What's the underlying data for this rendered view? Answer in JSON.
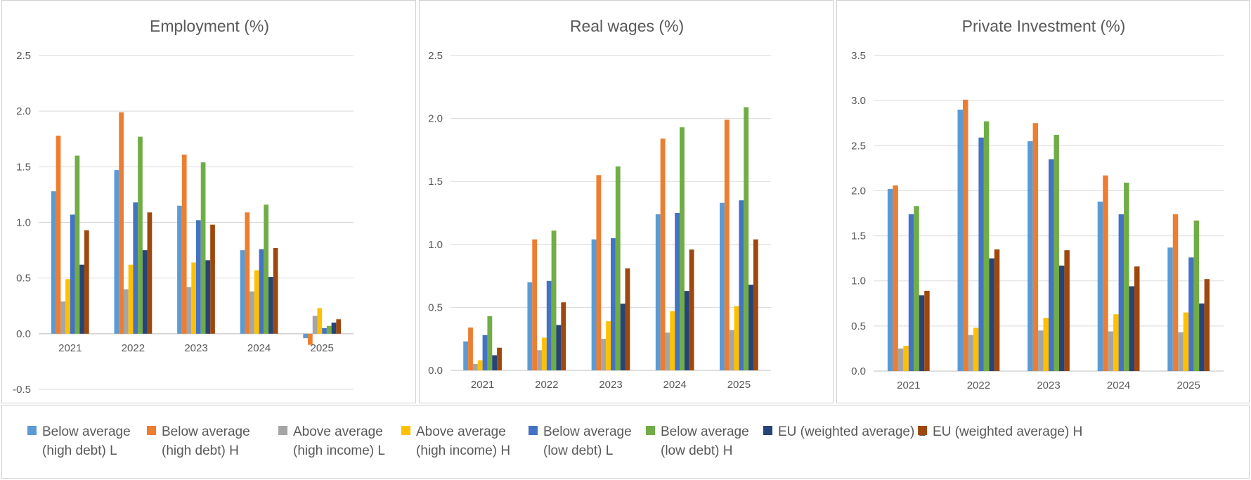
{
  "series": [
    {
      "name": "Below average\n(high debt) L",
      "color": "#5B9BD5"
    },
    {
      "name": "Below average\n(high debt) H",
      "color": "#ED7D31"
    },
    {
      "name": "Above average\n(high income) L",
      "color": "#A5A5A5"
    },
    {
      "name": "Above average\n(high income) H",
      "color": "#FFC000"
    },
    {
      "name": "Below average\n(low debt) L",
      "color": "#4472C4"
    },
    {
      "name": "Below average\n(low debt) H",
      "color": "#70AD47"
    },
    {
      "name": "EU (weighted average) L",
      "color": "#264478"
    },
    {
      "name": "EU (weighted average) H",
      "color": "#9E480E"
    }
  ],
  "chart_data": [
    {
      "type": "bar",
      "title": "Employment (%)",
      "categories": [
        "2021",
        "2022",
        "2023",
        "2024",
        "2025"
      ],
      "ylim": [
        -0.5,
        2.5
      ],
      "yticks": [
        "-0.5",
        "0.0",
        "0.5",
        "1.0",
        "1.5",
        "2.0",
        "2.5"
      ],
      "series": [
        {
          "name": "Below average (high debt) L",
          "values": [
            1.28,
            1.47,
            1.15,
            0.75,
            -0.04
          ]
        },
        {
          "name": "Below average (high debt) H",
          "values": [
            1.78,
            1.99,
            1.61,
            1.09,
            -0.1
          ]
        },
        {
          "name": "Above average (high income) L",
          "values": [
            0.29,
            0.4,
            0.42,
            0.38,
            0.16
          ]
        },
        {
          "name": "Above average (high income) H",
          "values": [
            0.49,
            0.62,
            0.64,
            0.57,
            0.23
          ]
        },
        {
          "name": "Below average (low debt) L",
          "values": [
            1.07,
            1.18,
            1.02,
            0.76,
            0.05
          ]
        },
        {
          "name": "Below average (low debt) H",
          "values": [
            1.6,
            1.77,
            1.54,
            1.16,
            0.07
          ]
        },
        {
          "name": "EU (weighted average) L",
          "values": [
            0.62,
            0.75,
            0.66,
            0.51,
            0.1
          ]
        },
        {
          "name": "EU (weighted average) H",
          "values": [
            0.93,
            1.09,
            0.98,
            0.77,
            0.13
          ]
        }
      ]
    },
    {
      "type": "bar",
      "title": "Real wages (%)",
      "categories": [
        "2021",
        "2022",
        "2023",
        "2024",
        "2025"
      ],
      "ylim": [
        0,
        2.5
      ],
      "yticks": [
        "0.0",
        "0.5",
        "1.0",
        "1.5",
        "2.0",
        "2.5"
      ],
      "series": [
        {
          "name": "Below average (high debt) L",
          "values": [
            0.23,
            0.7,
            1.04,
            1.24,
            1.33
          ]
        },
        {
          "name": "Below average (high debt) H",
          "values": [
            0.34,
            1.04,
            1.55,
            1.84,
            1.99
          ]
        },
        {
          "name": "Above average (high income) L",
          "values": [
            0.05,
            0.16,
            0.25,
            0.3,
            0.32
          ]
        },
        {
          "name": "Above average (high income) H",
          "values": [
            0.08,
            0.26,
            0.39,
            0.47,
            0.51
          ]
        },
        {
          "name": "Below average (low debt) L",
          "values": [
            0.28,
            0.71,
            1.05,
            1.25,
            1.35
          ]
        },
        {
          "name": "Below average (low debt) H",
          "values": [
            0.43,
            1.11,
            1.62,
            1.93,
            2.09
          ]
        },
        {
          "name": "EU (weighted average) L",
          "values": [
            0.12,
            0.36,
            0.53,
            0.63,
            0.68
          ]
        },
        {
          "name": "EU (weighted average) H",
          "values": [
            0.18,
            0.54,
            0.81,
            0.96,
            1.04
          ]
        }
      ]
    },
    {
      "type": "bar",
      "title": "Private Investment (%)",
      "categories": [
        "2021",
        "2022",
        "2023",
        "2024",
        "2025"
      ],
      "ylim": [
        0,
        3.5
      ],
      "yticks": [
        "0.0",
        "0.5",
        "1.0",
        "1.5",
        "2.0",
        "2.5",
        "3.0",
        "3.5"
      ],
      "series": [
        {
          "name": "Below average (high debt) L",
          "values": [
            2.02,
            2.9,
            2.55,
            1.88,
            1.37
          ]
        },
        {
          "name": "Below average (high debt) H",
          "values": [
            2.06,
            3.01,
            2.75,
            2.17,
            1.74
          ]
        },
        {
          "name": "Above average (high income) L",
          "values": [
            0.25,
            0.4,
            0.45,
            0.44,
            0.43
          ]
        },
        {
          "name": "Above average (high income) H",
          "values": [
            0.28,
            0.48,
            0.59,
            0.63,
            0.65
          ]
        },
        {
          "name": "Below average (low debt) L",
          "values": [
            1.74,
            2.59,
            2.35,
            1.74,
            1.26
          ]
        },
        {
          "name": "Below average (low debt) H",
          "values": [
            1.83,
            2.77,
            2.62,
            2.09,
            1.67
          ]
        },
        {
          "name": "EU (weighted average) L",
          "values": [
            0.84,
            1.25,
            1.17,
            0.94,
            0.75
          ]
        },
        {
          "name": "EU (weighted average) H",
          "values": [
            0.89,
            1.35,
            1.34,
            1.16,
            1.02
          ]
        }
      ]
    }
  ]
}
